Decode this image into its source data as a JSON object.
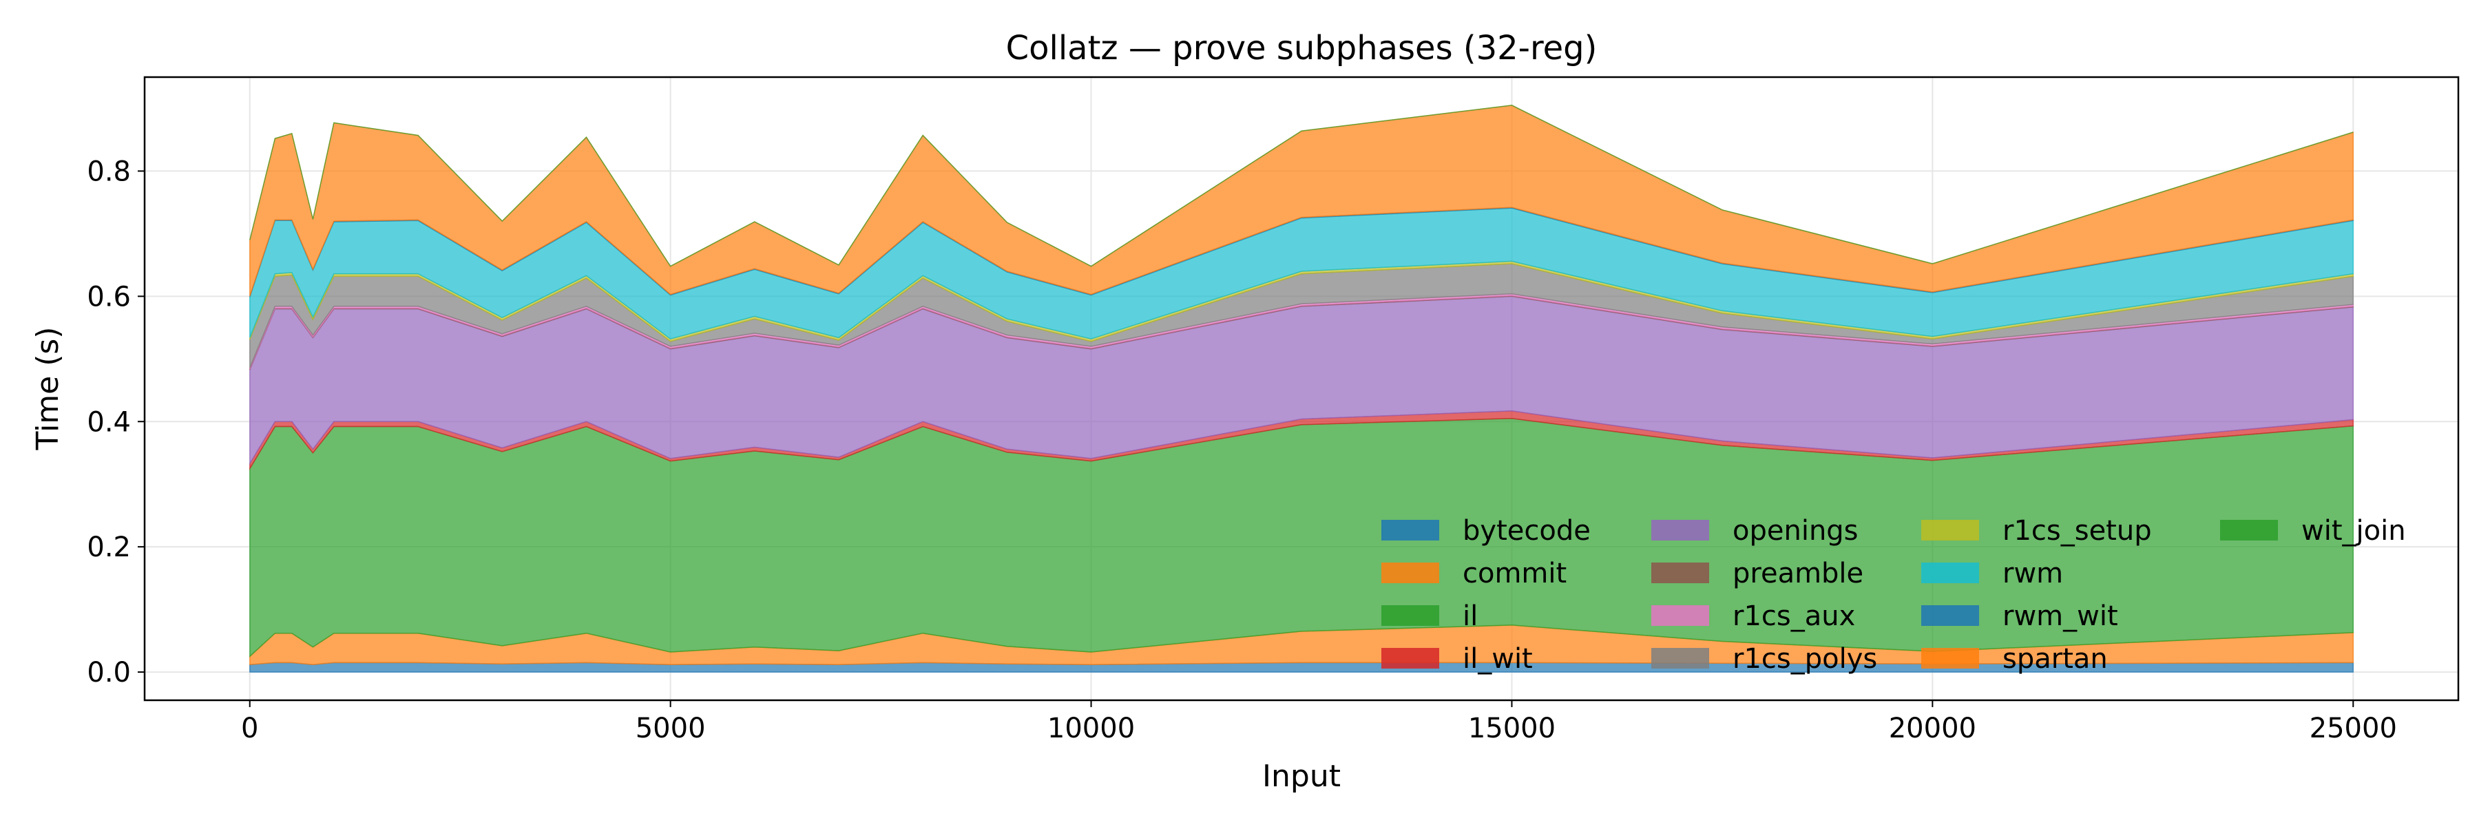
{
  "chart_data": {
    "type": "area",
    "stacked": true,
    "title": "Collatz — prove subphases (32-reg)",
    "xlabel": "Input",
    "ylabel": "Time (s)",
    "xlim": [
      -1250,
      26250
    ],
    "ylim": [
      -0.045,
      0.95
    ],
    "xticks": [
      0,
      5000,
      10000,
      15000,
      20000,
      25000
    ],
    "yticks": [
      0.0,
      0.2,
      0.4,
      0.6,
      0.8
    ],
    "xtick_labels": [
      "0",
      "5000",
      "10000",
      "15000",
      "20000",
      "25000"
    ],
    "ytick_labels": [
      "0.0",
      "0.2",
      "0.4",
      "0.6",
      "0.8"
    ],
    "grid": true,
    "legend_position": "lower-right",
    "legend_columns": 4,
    "x": [
      1,
      300,
      500,
      750,
      1000,
      2000,
      3000,
      4000,
      5000,
      6000,
      7000,
      8000,
      9000,
      10000,
      12500,
      15000,
      17500,
      20000,
      25000
    ],
    "series": [
      {
        "name": "bytecode",
        "color": "#1f77b4",
        "values": [
          0.012,
          0.015,
          0.015,
          0.012,
          0.015,
          0.015,
          0.013,
          0.015,
          0.012,
          0.013,
          0.012,
          0.015,
          0.013,
          0.012,
          0.015,
          0.015,
          0.014,
          0.013,
          0.015
        ]
      },
      {
        "name": "commit",
        "color": "#ff7f0e",
        "values": [
          0.013,
          0.047,
          0.047,
          0.028,
          0.047,
          0.047,
          0.029,
          0.047,
          0.02,
          0.027,
          0.022,
          0.047,
          0.028,
          0.02,
          0.05,
          0.06,
          0.035,
          0.02,
          0.048
        ]
      },
      {
        "name": "il",
        "color": "#2ca02c",
        "values": [
          0.3,
          0.33,
          0.33,
          0.31,
          0.33,
          0.33,
          0.31,
          0.33,
          0.305,
          0.313,
          0.305,
          0.33,
          0.31,
          0.305,
          0.33,
          0.33,
          0.313,
          0.305,
          0.33
        ]
      },
      {
        "name": "il_wit",
        "color": "#d62728",
        "values": [
          0.008,
          0.008,
          0.008,
          0.006,
          0.008,
          0.008,
          0.006,
          0.008,
          0.004,
          0.006,
          0.004,
          0.008,
          0.005,
          0.004,
          0.009,
          0.012,
          0.007,
          0.004,
          0.01
        ]
      },
      {
        "name": "openings",
        "color": "#9467bd",
        "values": [
          0.15,
          0.18,
          0.18,
          0.178,
          0.18,
          0.18,
          0.178,
          0.18,
          0.175,
          0.178,
          0.175,
          0.18,
          0.178,
          0.175,
          0.18,
          0.183,
          0.178,
          0.178,
          0.18
        ]
      },
      {
        "name": "preamble",
        "color": "#8c564b",
        "values": [
          0.001,
          0.001,
          0.001,
          0.001,
          0.001,
          0.001,
          0.001,
          0.001,
          0.001,
          0.001,
          0.001,
          0.001,
          0.001,
          0.001,
          0.001,
          0.001,
          0.001,
          0.001,
          0.001
        ]
      },
      {
        "name": "r1cs_aux",
        "color": "#e377c2",
        "values": [
          0.002,
          0.003,
          0.003,
          0.003,
          0.003,
          0.003,
          0.003,
          0.003,
          0.003,
          0.003,
          0.003,
          0.003,
          0.003,
          0.003,
          0.003,
          0.003,
          0.003,
          0.003,
          0.003
        ]
      },
      {
        "name": "r1cs_polys",
        "color": "#7f7f7f",
        "values": [
          0.045,
          0.048,
          0.05,
          0.025,
          0.048,
          0.048,
          0.022,
          0.045,
          0.008,
          0.023,
          0.008,
          0.045,
          0.022,
          0.008,
          0.048,
          0.048,
          0.022,
          0.008,
          0.045
        ]
      },
      {
        "name": "r1cs_setup",
        "color": "#bcbd22",
        "values": [
          0.003,
          0.004,
          0.004,
          0.004,
          0.004,
          0.004,
          0.004,
          0.004,
          0.004,
          0.004,
          0.004,
          0.004,
          0.004,
          0.004,
          0.004,
          0.004,
          0.004,
          0.004,
          0.004
        ]
      },
      {
        "name": "rwm",
        "color": "#17becf",
        "values": [
          0.065,
          0.085,
          0.083,
          0.075,
          0.083,
          0.085,
          0.075,
          0.085,
          0.07,
          0.075,
          0.07,
          0.085,
          0.075,
          0.07,
          0.085,
          0.085,
          0.075,
          0.07,
          0.085
        ]
      },
      {
        "name": "rwm_wit",
        "color": "#1f77b4",
        "values": [
          0.001,
          0.001,
          0.001,
          0.001,
          0.001,
          0.001,
          0.001,
          0.001,
          0.001,
          0.001,
          0.001,
          0.001,
          0.001,
          0.001,
          0.001,
          0.001,
          0.001,
          0.001,
          0.001
        ]
      },
      {
        "name": "spartan",
        "color": "#ff7f0e",
        "values": [
          0.09,
          0.13,
          0.138,
          0.08,
          0.157,
          0.135,
          0.078,
          0.135,
          0.045,
          0.075,
          0.045,
          0.138,
          0.078,
          0.045,
          0.138,
          0.163,
          0.085,
          0.045,
          0.14
        ]
      },
      {
        "name": "wit_join",
        "color": "#2ca02c",
        "values": [
          0.0,
          0.0,
          0.0,
          0.0,
          0.0,
          0.0,
          0.0,
          0.0,
          0.0,
          0.0,
          0.0,
          0.0,
          0.0,
          0.0,
          0.0,
          0.0,
          0.0,
          0.0,
          0.0
        ]
      }
    ]
  }
}
